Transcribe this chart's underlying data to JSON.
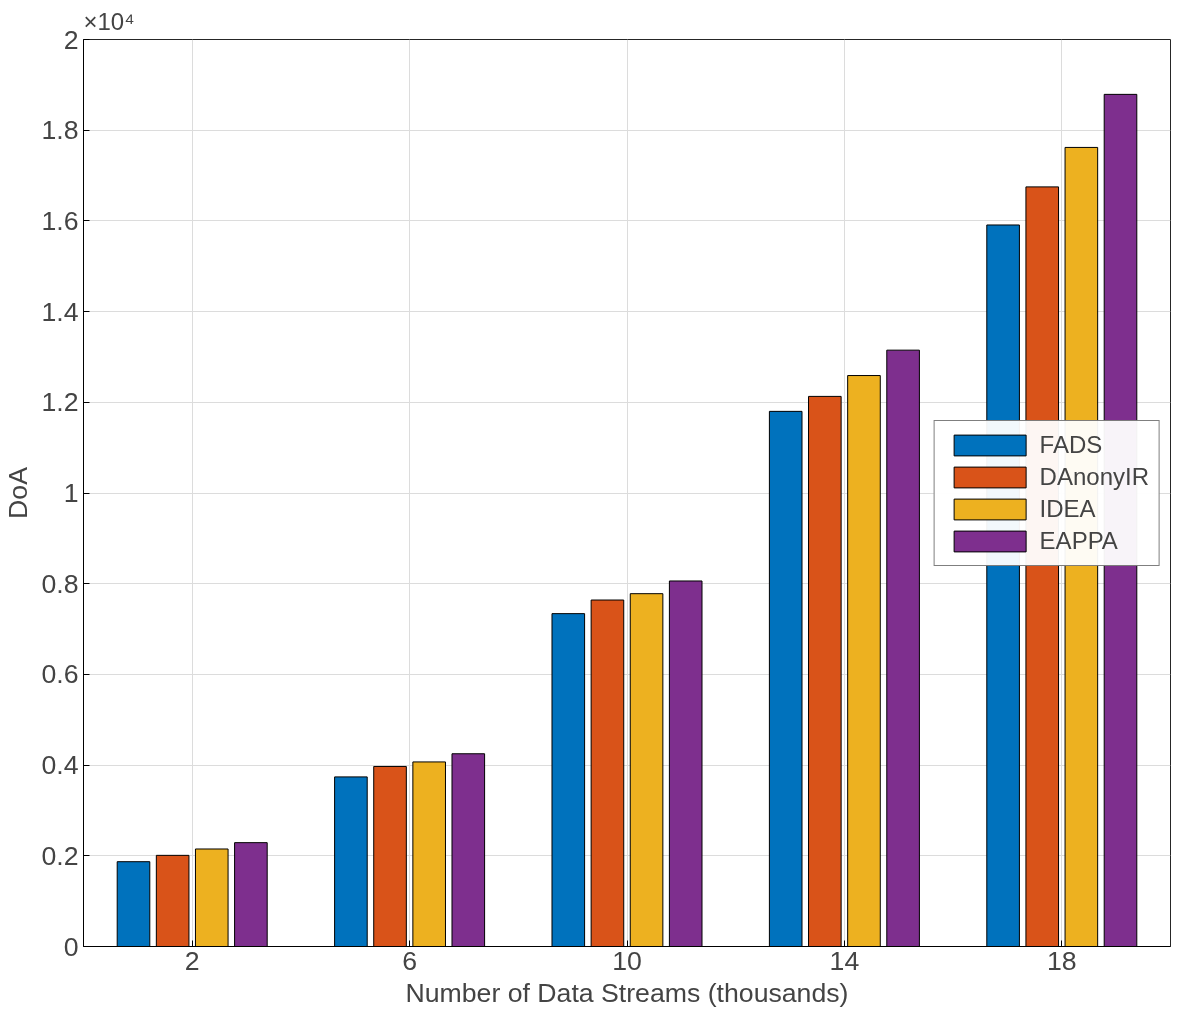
{
  "chart_data": {
    "type": "bar",
    "xlabel": "Number of Data Streams (thousands)",
    "ylabel": "DoA",
    "categories": [
      "2",
      "6",
      "10",
      "14",
      "18"
    ],
    "series": [
      {
        "name": "FADS",
        "color": "#0072bd",
        "values": [
          0.187,
          0.374,
          0.734,
          1.18,
          1.591
        ]
      },
      {
        "name": "DAnonyIR",
        "color": "#d95319",
        "values": [
          0.201,
          0.397,
          0.764,
          1.213,
          1.675
        ]
      },
      {
        "name": "IDEA",
        "color": "#edb120",
        "values": [
          0.215,
          0.407,
          0.778,
          1.259,
          1.762
        ]
      },
      {
        "name": "EAPPA",
        "color": "#7e2f8e",
        "values": [
          0.229,
          0.425,
          0.806,
          1.315,
          1.879
        ]
      }
    ],
    "ylim": [
      0,
      2
    ],
    "yticks": [
      0,
      0.2,
      0.4,
      0.6,
      0.8,
      1,
      1.2,
      1.4,
      1.6,
      1.8,
      2
    ],
    "annotations": [
      "×10⁴"
    ],
    "grid": true,
    "legend": "right"
  }
}
